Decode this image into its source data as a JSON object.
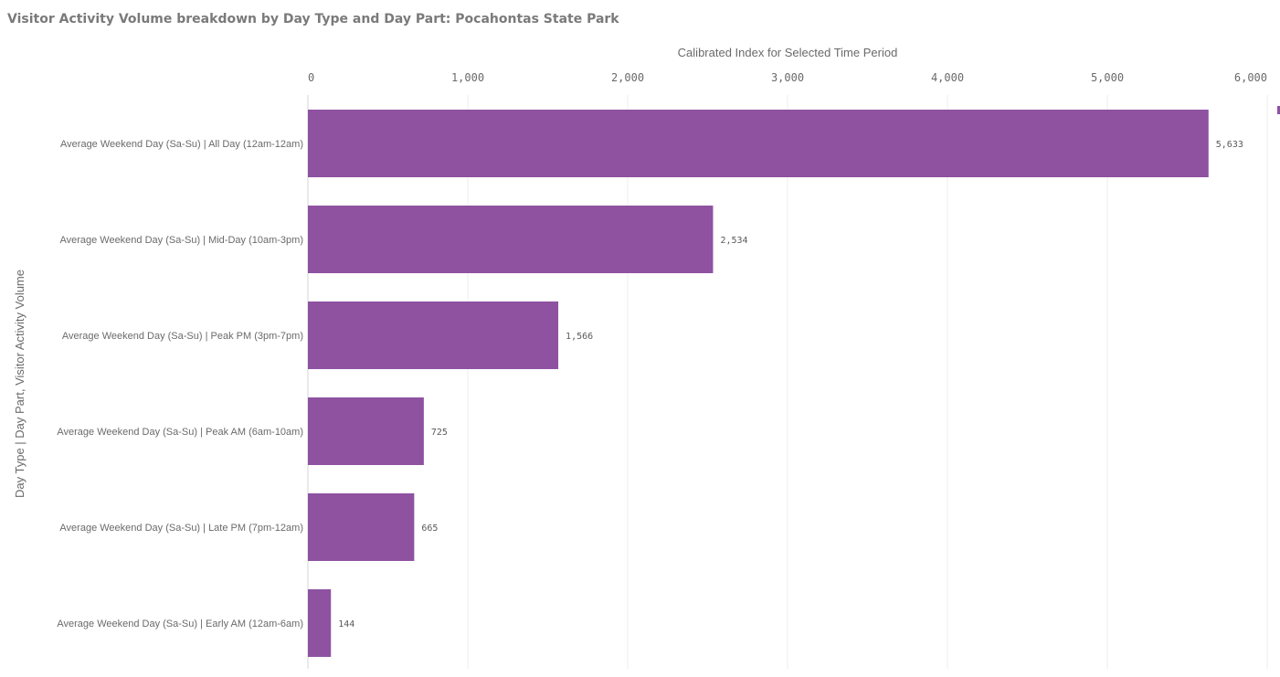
{
  "chart_data": {
    "type": "bar",
    "orientation": "horizontal",
    "title": "Visitor Activity Volume breakdown by Day Type and Day Part: Pocahontas State Park",
    "xlabel": "Calibrated Index for Selected Time Period",
    "ylabel": "Day Type | Day Part,  Visitor Activity Volume",
    "xlim": [
      0,
      6000
    ],
    "x_ticks": [
      0,
      1000,
      2000,
      3000,
      4000,
      5000,
      6000
    ],
    "x_tick_labels": [
      "0",
      "1,000",
      "2,000",
      "3,000",
      "4,000",
      "5,000",
      "6,000"
    ],
    "categories": [
      "Average Weekend Day (Sa-Su)  |  All Day (12am-12am)",
      "Average Weekend Day (Sa-Su)  |  Mid-Day (10am-3pm)",
      "Average Weekend Day (Sa-Su)  |  Peak PM (3pm-7pm)",
      "Average Weekend Day (Sa-Su)  |  Peak AM (6am-10am)",
      "Average Weekend Day (Sa-Su)  |  Late PM (7pm-12am)",
      "Average Weekend Day (Sa-Su)  |  Early AM (12am-6am)"
    ],
    "values": [
      5633,
      2534,
      1566,
      725,
      665,
      144
    ],
    "value_labels": [
      "5,633",
      "2,534",
      "1,566",
      "725",
      "665",
      "144"
    ],
    "bar_color": "#8e52a1",
    "grid": true,
    "grid_color": "#ececec",
    "legend": "right"
  }
}
